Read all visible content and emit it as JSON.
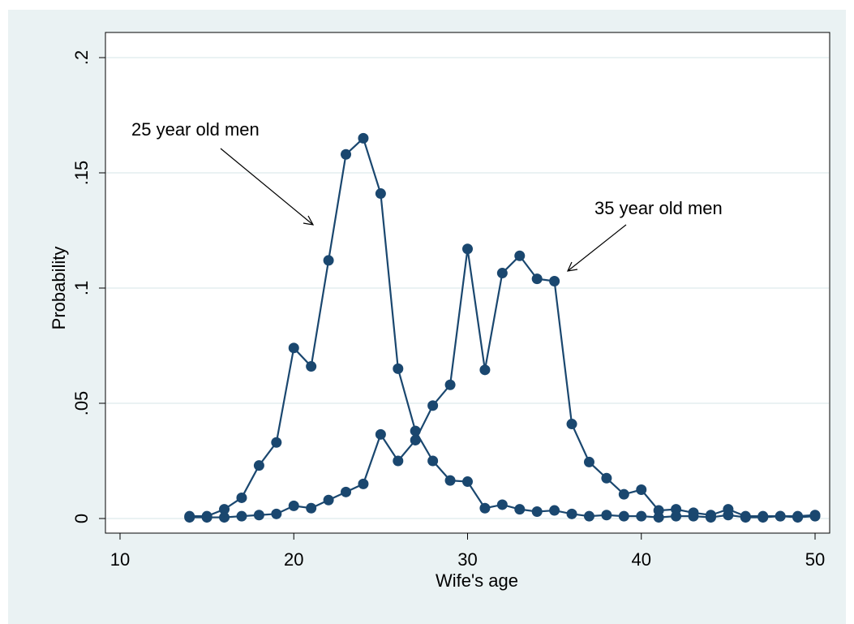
{
  "chart_data": {
    "type": "line",
    "x_label": "Wife's age",
    "y_label": "Probability",
    "annotations": [
      "25 year old men",
      "35 year old men"
    ],
    "x": [
      14,
      15,
      16,
      17,
      18,
      19,
      20,
      21,
      22,
      23,
      24,
      25,
      26,
      27,
      28,
      29,
      30,
      31,
      32,
      33,
      34,
      35,
      36,
      37,
      38,
      39,
      40,
      41,
      42,
      43,
      44,
      45,
      46,
      47,
      48,
      49,
      50
    ],
    "series": [
      {
        "name": "25 year old men",
        "color": "#1a476f",
        "values": [
          0.001,
          0.001,
          0.004,
          0.009,
          0.023,
          0.033,
          0.074,
          0.066,
          0.112,
          0.158,
          0.165,
          0.141,
          0.065,
          0.038,
          0.025,
          0.0165,
          0.016,
          0.0045,
          0.006,
          0.004,
          0.003,
          0.0035,
          0.002,
          0.001,
          0.0015,
          0.001,
          0.001,
          0.0005,
          0.001,
          0.001,
          0.0005,
          0.0015,
          0.0005,
          0.0005,
          0.001,
          0.0005,
          0.001
        ]
      },
      {
        "name": "35 year old men",
        "color": "#1a476f",
        "values": [
          0.0005,
          0.0005,
          0.0005,
          0.001,
          0.0015,
          0.002,
          0.0055,
          0.0045,
          0.008,
          0.0115,
          0.015,
          0.0365,
          0.025,
          0.034,
          0.049,
          0.058,
          0.117,
          0.0645,
          0.1065,
          0.114,
          0.104,
          0.103,
          0.041,
          0.0245,
          0.0175,
          0.0105,
          0.0125,
          0.0035,
          0.004,
          0.0025,
          0.0015,
          0.004,
          0.001,
          0.001,
          0.001,
          0.001,
          0.0015
        ]
      }
    ],
    "xlim": [
      10,
      50
    ],
    "xticks": [
      10,
      20,
      30,
      40,
      50
    ],
    "ylim": [
      0,
      0.2
    ],
    "yticks": [
      0,
      {
        "value": 0.05,
        "label": ".05"
      },
      {
        "value": 0.1,
        "label": ".1"
      },
      {
        "value": 0.15,
        "label": ".15"
      },
      {
        "value": 0.2,
        "label": ".2"
      }
    ],
    "grid": true
  }
}
